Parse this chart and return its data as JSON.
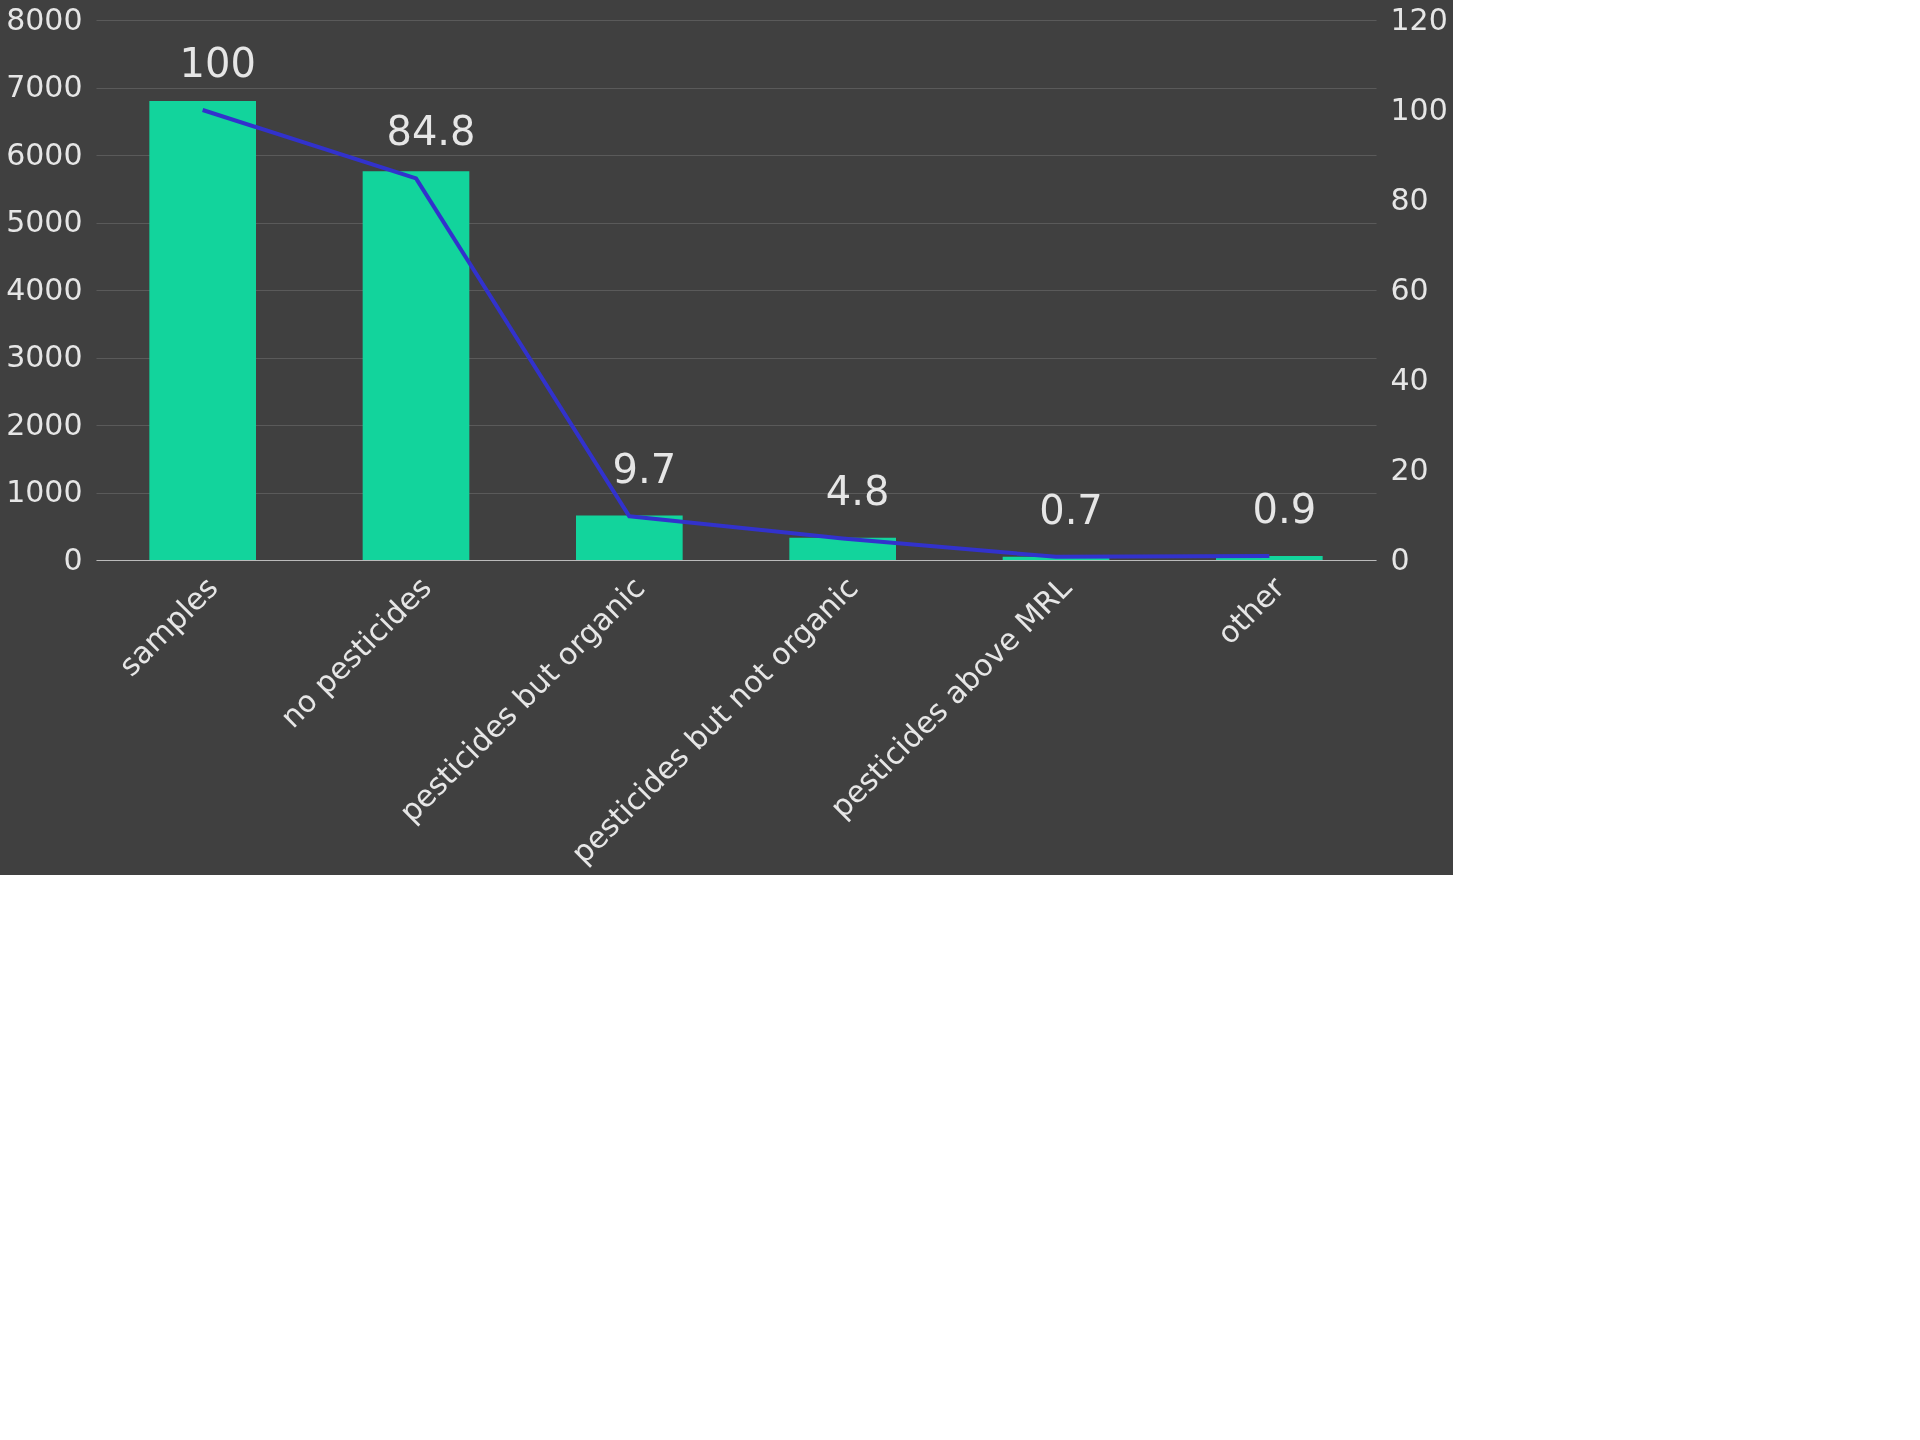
{
  "chart_data": {
    "type": "bar",
    "categories": [
      "samples",
      "no pesticides",
      "pesticides but organic",
      "pesticides but not organic",
      "pesticides above MRL",
      "other"
    ],
    "series": [
      {
        "color": "#12d49c",
        "values": [
          6800,
          5760,
          660,
          330,
          50,
          60
        ]
      },
      {
        "type": "line",
        "axis": "y2",
        "color": "#3232cc",
        "values": [
          100,
          84.8,
          9.7,
          4.8,
          0.7,
          0.9
        ],
        "value_labels": [
          "100",
          "84.8",
          "9.7",
          "4.8",
          "0.7",
          "0.9"
        ]
      }
    ],
    "ylim": [
      0,
      8000
    ],
    "yticks": [
      0,
      1000,
      2000,
      3000,
      4000,
      5000,
      6000,
      7000,
      8000
    ],
    "y2lim": [
      0,
      120
    ],
    "y2ticks": [
      0,
      20,
      40,
      60,
      80,
      100,
      120
    ],
    "grid": "y",
    "marker": "none",
    "line_style": "solid"
  }
}
